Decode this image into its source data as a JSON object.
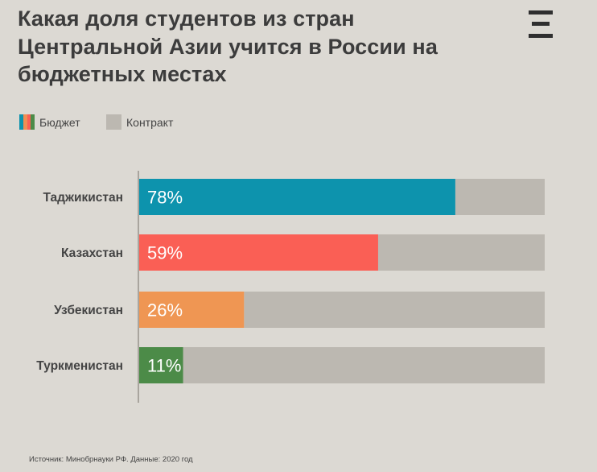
{
  "title": "Какая доля студентов из стран Центральной Азии учится в России на бюджетных местах",
  "legend": {
    "budget": "Бюджет",
    "contract": "Контракт"
  },
  "source": "Источник: Минобрнауки РФ. Данные: 2020 год",
  "colors": {
    "background": "#dcd9d3",
    "contract": "#bcb8b1",
    "legend_swatch": [
      "#0d93ad",
      "#ef8e53",
      "#fa5f55",
      "#4c8b48"
    ]
  },
  "chart_data": {
    "type": "bar",
    "orientation": "horizontal",
    "stacked": true,
    "categories": [
      "Таджикистан",
      "Казахстан",
      "Узбекистан",
      "Туркменистан"
    ],
    "series": [
      {
        "name": "Бюджет",
        "values": [
          78,
          59,
          26,
          11
        ],
        "colors": [
          "#0d93ad",
          "#fa5f55",
          "#ef9653",
          "#4c8b48"
        ]
      },
      {
        "name": "Контракт",
        "values": [
          22,
          41,
          74,
          89
        ],
        "color": "#bcb8b1"
      }
    ],
    "value_labels": [
      "78%",
      "59%",
      "26%",
      "11%"
    ],
    "xlim": [
      0,
      100
    ],
    "grid": false,
    "legend_position": "top-left"
  }
}
